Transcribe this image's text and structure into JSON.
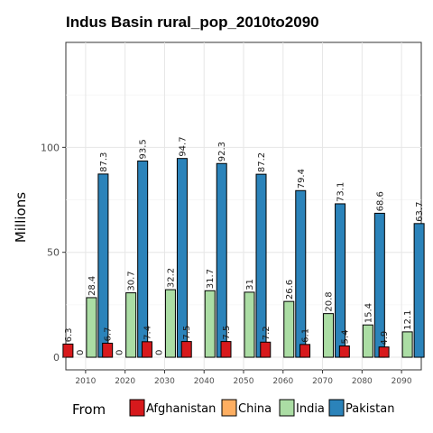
{
  "chart_data": {
    "type": "bar",
    "title": "Indus Basin rural_pop_2010to2090",
    "xlabel": "",
    "ylabel": "Millions",
    "ylim": [
      -6,
      150
    ],
    "yticks": [
      0,
      50,
      100
    ],
    "grid": true,
    "legend_title": "From",
    "legend_position": "bottom",
    "categories": [
      "2010",
      "2020",
      "2030",
      "2040",
      "2050",
      "2060",
      "2070",
      "2080",
      "2090"
    ],
    "series": [
      {
        "name": "Afghanistan",
        "color": "#d7191c",
        "values": [
          6.3,
          6.7,
          7.4,
          7.5,
          7.5,
          7.2,
          6.1,
          5.4,
          4.9
        ],
        "labels": [
          "6.3",
          "6.7",
          "7.4",
          "7.5",
          "7.5",
          "7.2",
          "6.1",
          "5.4",
          "4.9"
        ]
      },
      {
        "name": "China",
        "color": "#fdae61",
        "values": [
          0,
          0,
          0,
          0,
          0,
          0,
          0,
          0,
          0
        ],
        "labels": [
          "0",
          "0",
          "0",
          "",
          "",
          "",
          "",
          "",
          ""
        ]
      },
      {
        "name": "India",
        "color": "#abdda4",
        "values": [
          28.4,
          30.7,
          32.2,
          31.7,
          31,
          26.6,
          20.8,
          15.4,
          12.1
        ],
        "labels": [
          "28.4",
          "30.7",
          "32.2",
          "31.7",
          "31",
          "26.6",
          "20.8",
          "15.4",
          "12.1"
        ]
      },
      {
        "name": "Pakistan",
        "color": "#2b83ba",
        "values": [
          87.3,
          93.5,
          94.7,
          92.3,
          87.2,
          79.4,
          73.1,
          68.6,
          63.7
        ],
        "labels": [
          "87.3",
          "93.5",
          "94.7",
          "92.3",
          "87.2",
          "79.4",
          "73.1",
          "68.6",
          "63.7"
        ]
      }
    ]
  }
}
